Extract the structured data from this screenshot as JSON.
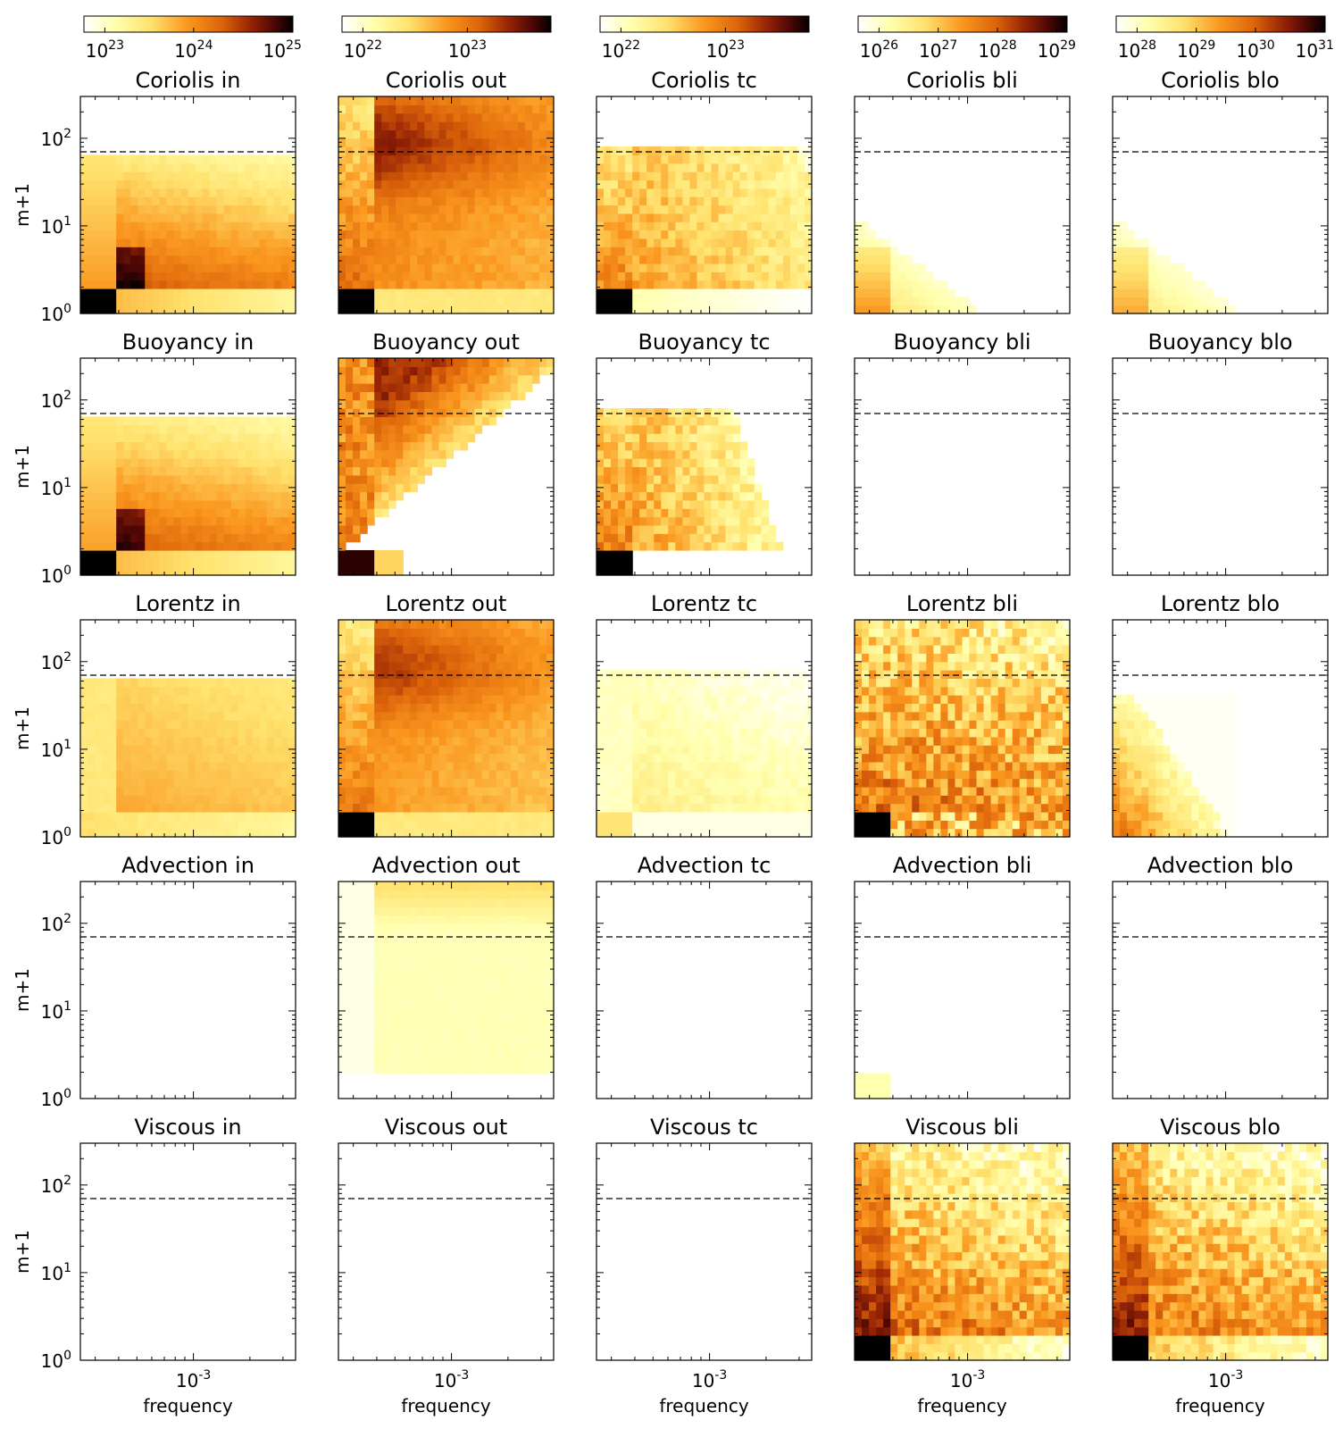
{
  "chart_data": {
    "type": "heatmap",
    "figure": "grid of 5 rows x 5 columns of frequency vs m+1 spectra",
    "xlabel": "frequency",
    "ylabel": "m+1",
    "x_scale": "log",
    "y_scale": "log",
    "xlim": [
      0.00025,
      0.0035
    ],
    "ylim": [
      1,
      300
    ],
    "x_ticks": [
      {
        "base": "10",
        "exp": "-3"
      }
    ],
    "y_ticks": [
      {
        "base": "10",
        "exp": "0"
      },
      {
        "base": "10",
        "exp": "1"
      },
      {
        "base": "10",
        "exp": "2"
      }
    ],
    "dashed_reference_m": 70,
    "colormap": "afmhot_r",
    "colorbars": [
      {
        "column": "in",
        "ticks": [
          {
            "base": "10",
            "exp": "23"
          },
          {
            "base": "10",
            "exp": "24"
          },
          {
            "base": "10",
            "exp": "25"
          }
        ]
      },
      {
        "column": "out",
        "ticks": [
          {
            "base": "10",
            "exp": "22"
          },
          {
            "base": "10",
            "exp": "23"
          }
        ]
      },
      {
        "column": "tc",
        "ticks": [
          {
            "base": "10",
            "exp": "22"
          },
          {
            "base": "10",
            "exp": "23"
          }
        ]
      },
      {
        "column": "bli",
        "ticks": [
          {
            "base": "10",
            "exp": "26"
          },
          {
            "base": "10",
            "exp": "27"
          },
          {
            "base": "10",
            "exp": "28"
          },
          {
            "base": "10",
            "exp": "29"
          }
        ]
      },
      {
        "column": "blo",
        "ticks": [
          {
            "base": "10",
            "exp": "28"
          },
          {
            "base": "10",
            "exp": "29"
          },
          {
            "base": "10",
            "exp": "30"
          },
          {
            "base": "10",
            "exp": "31"
          }
        ]
      }
    ],
    "columns": [
      "in",
      "out",
      "tc",
      "bli",
      "blo"
    ],
    "rows": [
      "Coriolis",
      "Buoyancy",
      "Lorentz",
      "Advection",
      "Viscous"
    ],
    "panels": [
      [
        {
          "title": "Coriolis in",
          "pattern": "inner",
          "amp": 0.55
        },
        {
          "title": "Coriolis out",
          "pattern": "outer",
          "amp": 0.8
        },
        {
          "title": "Coriolis tc",
          "pattern": "tc",
          "amp": 0.5
        },
        {
          "title": "Coriolis bli",
          "pattern": "lowcorner",
          "amp": 0.35
        },
        {
          "title": "Coriolis blo",
          "pattern": "lowcorner",
          "amp": 0.2
        }
      ],
      [
        {
          "title": "Buoyancy in",
          "pattern": "inner",
          "amp": 0.5
        },
        {
          "title": "Buoyancy out",
          "pattern": "diagonal",
          "amp": 0.75
        },
        {
          "title": "Buoyancy tc",
          "pattern": "tcsparse",
          "amp": 0.45
        },
        {
          "title": "Buoyancy bli",
          "pattern": "empty",
          "amp": 0
        },
        {
          "title": "Buoyancy blo",
          "pattern": "empty",
          "amp": 0
        }
      ],
      [
        {
          "title": "Lorentz in",
          "pattern": "innerflat",
          "amp": 0.42
        },
        {
          "title": "Lorentz out",
          "pattern": "outer",
          "amp": 0.65
        },
        {
          "title": "Lorentz tc",
          "pattern": "tcflat",
          "amp": 0.35
        },
        {
          "title": "Lorentz bli",
          "pattern": "blfull",
          "amp": 0.8
        },
        {
          "title": "Lorentz blo",
          "pattern": "bloblob",
          "amp": 0.55
        }
      ],
      [
        {
          "title": "Advection in",
          "pattern": "empty",
          "amp": 0
        },
        {
          "title": "Advection out",
          "pattern": "advout",
          "amp": 0.3
        },
        {
          "title": "Advection tc",
          "pattern": "empty",
          "amp": 0
        },
        {
          "title": "Advection bli",
          "pattern": "tinycorner",
          "amp": 0.1
        },
        {
          "title": "Advection blo",
          "pattern": "empty",
          "amp": 0
        }
      ],
      [
        {
          "title": "Viscous in",
          "pattern": "empty",
          "amp": 0
        },
        {
          "title": "Viscous out",
          "pattern": "empty",
          "amp": 0
        },
        {
          "title": "Viscous tc",
          "pattern": "empty",
          "amp": 0
        },
        {
          "title": "Viscous bli",
          "pattern": "viscbl",
          "amp": 0.8
        },
        {
          "title": "Viscous blo",
          "pattern": "viscbl",
          "amp": 0.75
        }
      ]
    ]
  }
}
